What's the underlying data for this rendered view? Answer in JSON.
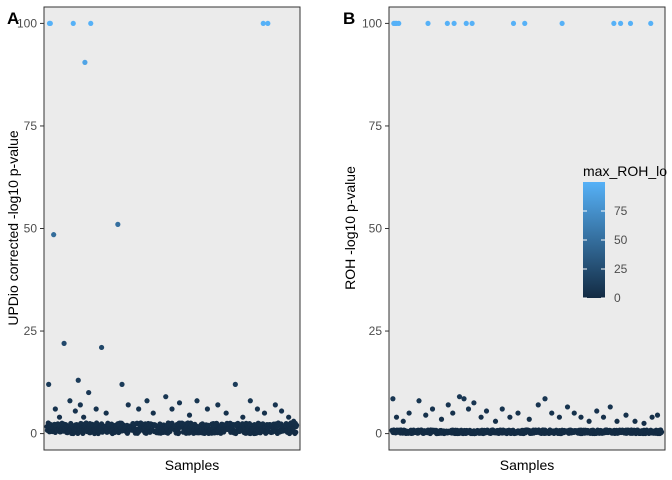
{
  "chart_data": [
    {
      "type": "scatter",
      "panel_tag": "A",
      "xlabel": "Samples",
      "ylabel": "UPDio corrected -log10 p-value",
      "ylim": [
        -4,
        104
      ],
      "yticks": [
        0,
        25,
        50,
        75,
        100
      ],
      "x_tick_labels": false,
      "background": "#ebebeb",
      "grid": false,
      "n_samples": 600,
      "points": [
        {
          "x": 6,
          "y": 100
        },
        {
          "x": 8,
          "y": 100
        },
        {
          "x": 63,
          "y": 100
        },
        {
          "x": 105,
          "y": 100
        },
        {
          "x": 519,
          "y": 100
        },
        {
          "x": 530,
          "y": 100
        },
        {
          "x": 91,
          "y": 90.5
        },
        {
          "x": 16,
          "y": 48.5
        },
        {
          "x": 170,
          "y": 51
        },
        {
          "x": 131,
          "y": 21
        },
        {
          "x": 4,
          "y": 12
        },
        {
          "x": 41,
          "y": 22
        },
        {
          "x": 75,
          "y": 13
        },
        {
          "x": 100,
          "y": 10
        },
        {
          "x": 20,
          "y": 6
        },
        {
          "x": 30,
          "y": 4
        },
        {
          "x": 55,
          "y": 8
        },
        {
          "x": 68,
          "y": 5.5
        },
        {
          "x": 80,
          "y": 7
        },
        {
          "x": 88,
          "y": 4
        },
        {
          "x": 118,
          "y": 6
        },
        {
          "x": 142,
          "y": 5
        },
        {
          "x": 180,
          "y": 12
        },
        {
          "x": 195,
          "y": 7
        },
        {
          "x": 220,
          "y": 6
        },
        {
          "x": 240,
          "y": 8
        },
        {
          "x": 255,
          "y": 5
        },
        {
          "x": 285,
          "y": 9
        },
        {
          "x": 300,
          "y": 6
        },
        {
          "x": 318,
          "y": 7.5
        },
        {
          "x": 342,
          "y": 4.5
        },
        {
          "x": 360,
          "y": 8
        },
        {
          "x": 385,
          "y": 6
        },
        {
          "x": 410,
          "y": 7
        },
        {
          "x": 430,
          "y": 5
        },
        {
          "x": 452,
          "y": 12
        },
        {
          "x": 470,
          "y": 4
        },
        {
          "x": 488,
          "y": 8
        },
        {
          "x": 505,
          "y": 6
        },
        {
          "x": 522,
          "y": 5
        },
        {
          "x": 548,
          "y": 7
        },
        {
          "x": 563,
          "y": 5.5
        },
        {
          "x": 580,
          "y": 4
        },
        {
          "x": 592,
          "y": 3
        }
      ]
    },
    {
      "type": "scatter",
      "panel_tag": "B",
      "xlabel": "Samples",
      "ylabel": "ROH -log10 p-value",
      "ylim": [
        -4,
        104
      ],
      "yticks": [
        0,
        25,
        50,
        75,
        100
      ],
      "x_tick_labels": false,
      "background": "#ebebeb",
      "grid": false,
      "n_samples": 600,
      "points": [
        {
          "x": 4,
          "y": 100
        },
        {
          "x": 7,
          "y": 100
        },
        {
          "x": 10,
          "y": 100
        },
        {
          "x": 15,
          "y": 100
        },
        {
          "x": 80,
          "y": 100
        },
        {
          "x": 123,
          "y": 100
        },
        {
          "x": 138,
          "y": 100
        },
        {
          "x": 165,
          "y": 100
        },
        {
          "x": 178,
          "y": 100
        },
        {
          "x": 270,
          "y": 100
        },
        {
          "x": 295,
          "y": 100
        },
        {
          "x": 378,
          "y": 100
        },
        {
          "x": 493,
          "y": 100
        },
        {
          "x": 508,
          "y": 100
        },
        {
          "x": 530,
          "y": 100
        },
        {
          "x": 575,
          "y": 100
        },
        {
          "x": 2,
          "y": 8.5
        },
        {
          "x": 10,
          "y": 4
        },
        {
          "x": 25,
          "y": 3
        },
        {
          "x": 38,
          "y": 5
        },
        {
          "x": 60,
          "y": 8
        },
        {
          "x": 75,
          "y": 4.5
        },
        {
          "x": 90,
          "y": 6
        },
        {
          "x": 110,
          "y": 3.5
        },
        {
          "x": 125,
          "y": 7
        },
        {
          "x": 135,
          "y": 5
        },
        {
          "x": 150,
          "y": 9
        },
        {
          "x": 160,
          "y": 8.5
        },
        {
          "x": 170,
          "y": 6
        },
        {
          "x": 182,
          "y": 7.5
        },
        {
          "x": 198,
          "y": 4
        },
        {
          "x": 210,
          "y": 5.5
        },
        {
          "x": 230,
          "y": 3
        },
        {
          "x": 245,
          "y": 6
        },
        {
          "x": 262,
          "y": 4
        },
        {
          "x": 280,
          "y": 5
        },
        {
          "x": 305,
          "y": 3.5
        },
        {
          "x": 325,
          "y": 7
        },
        {
          "x": 340,
          "y": 8.5
        },
        {
          "x": 355,
          "y": 5
        },
        {
          "x": 372,
          "y": 4
        },
        {
          "x": 390,
          "y": 6.5
        },
        {
          "x": 405,
          "y": 5
        },
        {
          "x": 420,
          "y": 4
        },
        {
          "x": 438,
          "y": 3
        },
        {
          "x": 455,
          "y": 5.5
        },
        {
          "x": 470,
          "y": 4
        },
        {
          "x": 485,
          "y": 6.5
        },
        {
          "x": 500,
          "y": 3
        },
        {
          "x": 520,
          "y": 4.5
        },
        {
          "x": 540,
          "y": 3
        },
        {
          "x": 560,
          "y": 2.5
        },
        {
          "x": 578,
          "y": 4
        },
        {
          "x": 590,
          "y": 4.5
        }
      ]
    }
  ],
  "legend": {
    "title": "max_ROH_lo",
    "type": "colorbar",
    "breaks": [
      0,
      25,
      50,
      75
    ],
    "range": [
      0,
      100
    ],
    "low_color": "#132b43",
    "high_color": "#56b1f7",
    "placement": "right"
  }
}
